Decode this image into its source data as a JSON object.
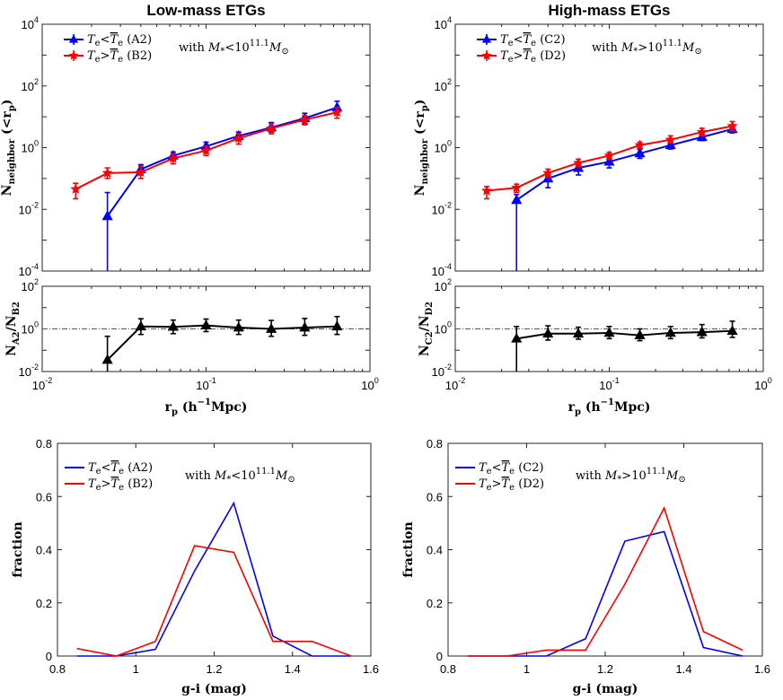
{
  "chart_data": [
    {
      "id": "lm_top",
      "type": "line",
      "title": "Low-mass ETGs",
      "xscale": "log",
      "yscale": "log",
      "xlim": [
        0.01,
        1
      ],
      "ylim": [
        0.0001,
        10000
      ],
      "ylabel_main": "N",
      "ylabel_sub": "neighbor",
      "ylabel_tail": " (<r",
      "ylabel_tail_sub": "p",
      "ylabel_close": ")",
      "yticks": [
        {
          "base": "10",
          "exp": "-4",
          "v": 0.0001
        },
        {
          "base": "10",
          "exp": "-2",
          "v": 0.01
        },
        {
          "base": "10",
          "exp": "0",
          "v": 1
        },
        {
          "base": "10",
          "exp": "2",
          "v": 100
        },
        {
          "base": "10",
          "exp": "4",
          "v": 10000
        }
      ],
      "legend": [
        {
          "sym": "T",
          "sub": "e",
          "rel": "<",
          "bar": "T",
          "barsub": "e",
          "tag": " (A2)",
          "color": "#0000ff"
        },
        {
          "sym": "T",
          "sub": "e",
          "rel": ">",
          "bar": "T",
          "barsub": "e",
          "tag": " (B2)",
          "color": "#ff0000"
        }
      ],
      "mass_note": {
        "pre": "with ",
        "M": "M",
        "Msub": "*",
        "rel": "<10",
        "exp": "11.1",
        "post": "M",
        "postsub": "⊙"
      },
      "series": [
        {
          "name": "A2",
          "color": "#0000ff",
          "marker": "triangle",
          "x": [
            0.025,
            0.04,
            0.063,
            0.1,
            0.158,
            0.25,
            0.4,
            0.63
          ],
          "y": [
            0.006,
            0.2,
            0.55,
            1.1,
            2.4,
            4.5,
            9,
            20
          ],
          "ylo": [
            0.0001,
            0.13,
            0.4,
            0.8,
            1.7,
            3.2,
            6,
            12
          ],
          "yhi": [
            0.035,
            0.28,
            0.72,
            1.5,
            3.2,
            6.5,
            13,
            32
          ]
        },
        {
          "name": "B2",
          "color": "#ff0000",
          "marker": "star",
          "x": [
            0.016,
            0.025,
            0.04,
            0.063,
            0.1,
            0.158,
            0.25,
            0.4,
            0.63
          ],
          "y": [
            0.045,
            0.15,
            0.16,
            0.45,
            0.8,
            2.0,
            4.2,
            8,
            14
          ],
          "ylo": [
            0.022,
            0.1,
            0.1,
            0.3,
            0.55,
            1.3,
            2.8,
            5.5,
            9
          ],
          "yhi": [
            0.07,
            0.22,
            0.25,
            0.62,
            1.1,
            2.8,
            6,
            11,
            20
          ]
        }
      ]
    },
    {
      "id": "lm_ratio",
      "type": "line",
      "xscale": "log",
      "yscale": "log",
      "xlim": [
        0.01,
        1
      ],
      "ylim": [
        0.01,
        100
      ],
      "xlabel": "r",
      "xlabel_sub": "p",
      "xlabel_tail": " (h",
      "xlabel_exp": "−1",
      "xlabel_end": "Mpc)",
      "ylabel_main": "N",
      "ylabel_sub1": "A2",
      "ylabel_mid": "/N",
      "ylabel_sub2": "B2",
      "yticks": [
        {
          "base": "10",
          "exp": "-2",
          "v": 0.01
        },
        {
          "base": "10",
          "exp": "0",
          "v": 1
        },
        {
          "base": "10",
          "exp": "2",
          "v": 100
        }
      ],
      "xticks": [
        {
          "base": "10",
          "exp": "-2",
          "v": 0.01
        },
        {
          "base": "10",
          "exp": "-1",
          "v": 0.1
        },
        {
          "base": "10",
          "exp": "0",
          "v": 1
        }
      ],
      "refline": 1,
      "series": [
        {
          "name": "A2/B2",
          "color": "#000000",
          "marker": "triangle",
          "x": [
            0.025,
            0.04,
            0.063,
            0.1,
            0.158,
            0.25,
            0.4,
            0.63
          ],
          "y": [
            0.035,
            1.3,
            1.25,
            1.45,
            1.15,
            1.0,
            1.15,
            1.3
          ],
          "ylo": [
            0.01,
            0.55,
            0.6,
            0.75,
            0.55,
            0.45,
            0.5,
            0.55
          ],
          "yhi": [
            0.45,
            3.0,
            2.6,
            2.9,
            2.6,
            2.5,
            3.1,
            3.8
          ]
        }
      ]
    },
    {
      "id": "hm_top",
      "type": "line",
      "title": "High-mass ETGs",
      "xscale": "log",
      "yscale": "log",
      "xlim": [
        0.01,
        1
      ],
      "ylim": [
        0.0001,
        10000
      ],
      "ylabel_main": "N",
      "ylabel_sub": "neighbor",
      "ylabel_tail": " (<r",
      "ylabel_tail_sub": "p",
      "ylabel_close": ")",
      "yticks": [
        {
          "base": "10",
          "exp": "-4",
          "v": 0.0001
        },
        {
          "base": "10",
          "exp": "-2",
          "v": 0.01
        },
        {
          "base": "10",
          "exp": "0",
          "v": 1
        },
        {
          "base": "10",
          "exp": "2",
          "v": 100
        },
        {
          "base": "10",
          "exp": "4",
          "v": 10000
        }
      ],
      "legend": [
        {
          "sym": "T",
          "sub": "e",
          "rel": "<",
          "bar": "T",
          "barsub": "e",
          "tag": " (C2)",
          "color": "#0000ff"
        },
        {
          "sym": "T",
          "sub": "e",
          "rel": ">",
          "bar": "T",
          "barsub": "e",
          "tag": " (D2)",
          "color": "#ff0000"
        }
      ],
      "mass_note": {
        "pre": "with ",
        "M": "M",
        "Msub": "*",
        "rel": ">10",
        "exp": "11.1",
        "post": "M",
        "postsub": "⊙"
      },
      "series": [
        {
          "name": "C2",
          "color": "#0000ff",
          "marker": "triangle",
          "x": [
            0.025,
            0.04,
            0.063,
            0.1,
            0.158,
            0.25,
            0.4,
            0.63
          ],
          "y": [
            0.02,
            0.1,
            0.22,
            0.35,
            0.65,
            1.2,
            2.2,
            4.0
          ],
          "ylo": [
            0.0001,
            0.05,
            0.13,
            0.22,
            0.45,
            0.9,
            1.7,
            3.0
          ],
          "yhi": [
            0.03,
            0.16,
            0.3,
            0.5,
            0.9,
            1.6,
            2.9,
            5.2
          ]
        },
        {
          "name": "D2",
          "color": "#ff0000",
          "marker": "star",
          "x": [
            0.016,
            0.025,
            0.04,
            0.063,
            0.1,
            0.158,
            0.25,
            0.4,
            0.63
          ],
          "y": [
            0.04,
            0.05,
            0.15,
            0.32,
            0.55,
            1.2,
            1.8,
            3.2,
            5.0
          ],
          "ylo": [
            0.022,
            0.035,
            0.11,
            0.24,
            0.42,
            0.95,
            1.4,
            2.4,
            3.5
          ],
          "yhi": [
            0.055,
            0.065,
            0.2,
            0.42,
            0.7,
            1.5,
            2.4,
            4.2,
            7.0
          ]
        }
      ]
    },
    {
      "id": "hm_ratio",
      "type": "line",
      "xscale": "log",
      "yscale": "log",
      "xlim": [
        0.01,
        1
      ],
      "ylim": [
        0.01,
        100
      ],
      "xlabel": "r",
      "xlabel_sub": "p",
      "xlabel_tail": " (h",
      "xlabel_exp": "−1",
      "xlabel_end": "Mpc)",
      "ylabel_main": "N",
      "ylabel_sub1": "C2",
      "ylabel_mid": "/N",
      "ylabel_sub2": "D2",
      "yticks": [
        {
          "base": "10",
          "exp": "-2",
          "v": 0.01
        },
        {
          "base": "10",
          "exp": "0",
          "v": 1
        },
        {
          "base": "10",
          "exp": "2",
          "v": 100
        }
      ],
      "xticks": [
        {
          "base": "10",
          "exp": "-2",
          "v": 0.01
        },
        {
          "base": "10",
          "exp": "-1",
          "v": 0.1
        },
        {
          "base": "10",
          "exp": "0",
          "v": 1
        }
      ],
      "refline": 1,
      "series": [
        {
          "name": "C2/D2",
          "color": "#000000",
          "marker": "triangle",
          "x": [
            0.025,
            0.04,
            0.063,
            0.1,
            0.158,
            0.25,
            0.4,
            0.63
          ],
          "y": [
            0.35,
            0.6,
            0.6,
            0.65,
            0.5,
            0.65,
            0.7,
            0.8
          ],
          "ylo": [
            0.01,
            0.3,
            0.33,
            0.35,
            0.28,
            0.35,
            0.38,
            0.4
          ],
          "yhi": [
            1.3,
            1.4,
            1.2,
            1.3,
            1.0,
            1.3,
            1.6,
            2.3
          ]
        }
      ]
    },
    {
      "id": "lm_hist",
      "type": "line",
      "xlim": [
        0.8,
        1.6
      ],
      "ylim": [
        0,
        0.8
      ],
      "xlabel": "g-i (mag)",
      "ylabel": "fraction",
      "xticks": [
        "0.8",
        "1",
        "1.2",
        "1.4",
        "1.6"
      ],
      "yticks": [
        "0",
        "0.2",
        "0.4",
        "0.6",
        "0.8"
      ],
      "legend": [
        {
          "sym": "T",
          "sub": "e",
          "rel": "<",
          "bar": "T",
          "barsub": "e",
          "tag": " (A2)",
          "color": "#0000ff"
        },
        {
          "sym": "T",
          "sub": "e",
          "rel": ">",
          "bar": "T",
          "barsub": "e",
          "tag": " (B2)",
          "color": "#ff0000"
        }
      ],
      "mass_note": {
        "pre": "with ",
        "M": "M",
        "Msub": "*",
        "rel": "<10",
        "exp": "11.1",
        "post": "M",
        "postsub": "⊙"
      },
      "series": [
        {
          "name": "A2",
          "color": "#0000ff",
          "x": [
            0.85,
            0.95,
            1.05,
            1.15,
            1.25,
            1.35,
            1.45,
            1.55
          ],
          "y": [
            0,
            0,
            0.025,
            0.32,
            0.575,
            0.075,
            0,
            0
          ]
        },
        {
          "name": "B2",
          "color": "#ff0000",
          "x": [
            0.85,
            0.95,
            1.05,
            1.15,
            1.25,
            1.35,
            1.45,
            1.55
          ],
          "y": [
            0.028,
            0,
            0.055,
            0.415,
            0.39,
            0.055,
            0.055,
            0
          ]
        }
      ]
    },
    {
      "id": "hm_hist",
      "type": "line",
      "xlim": [
        0.8,
        1.6
      ],
      "ylim": [
        0,
        0.8
      ],
      "xlabel": "g-i (mag)",
      "ylabel": "fraction",
      "xticks": [
        "0.8",
        "1",
        "1.2",
        "1.4",
        "1.6"
      ],
      "yticks": [
        "0",
        "0.2",
        "0.4",
        "0.6",
        "0.8"
      ],
      "legend": [
        {
          "sym": "T",
          "sub": "e",
          "rel": "<",
          "bar": "T",
          "barsub": "e",
          "tag": " (C2)",
          "color": "#0000ff"
        },
        {
          "sym": "T",
          "sub": "e",
          "rel": ">",
          "bar": "T",
          "barsub": "e",
          "tag": " (D2)",
          "color": "#ff0000"
        }
      ],
      "mass_note": {
        "pre": "with ",
        "M": "M",
        "Msub": "*",
        "rel": ">10",
        "exp": "11.1",
        "post": "M",
        "postsub": "⊙"
      },
      "series": [
        {
          "name": "C2",
          "color": "#0000ff",
          "x": [
            0.85,
            0.95,
            1.05,
            1.15,
            1.25,
            1.35,
            1.45,
            1.55
          ],
          "y": [
            0,
            0,
            0,
            0.065,
            0.432,
            0.468,
            0.032,
            0
          ]
        },
        {
          "name": "D2",
          "color": "#ff0000",
          "x": [
            0.85,
            0.95,
            1.05,
            1.15,
            1.25,
            1.35,
            1.45,
            1.55
          ],
          "y": [
            0,
            0,
            0.022,
            0.022,
            0.27,
            0.557,
            0.092,
            0.022
          ]
        }
      ]
    }
  ]
}
